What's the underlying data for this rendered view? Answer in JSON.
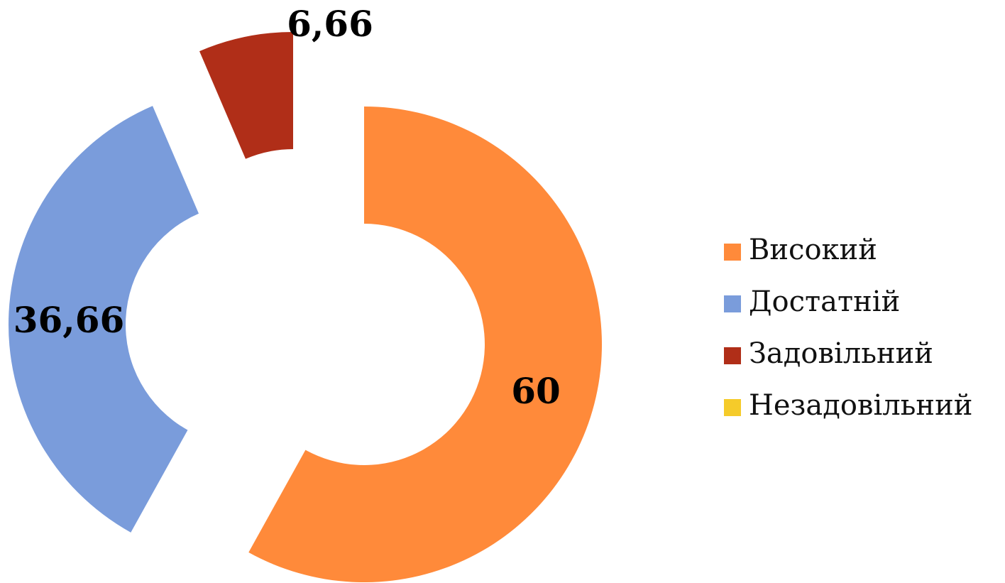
{
  "chart_data": {
    "type": "donut",
    "categories": [
      "Високий",
      "Достатній",
      "Задовільний",
      "Незадовільний"
    ],
    "values": [
      60,
      36.66,
      6.66,
      0
    ],
    "value_labels": [
      "60",
      "36,66",
      "6,66",
      null
    ],
    "colors": [
      "#FF8A3A",
      "#7A9CDB",
      "#B02E18",
      "#F5CB2A"
    ],
    "legend": "right"
  }
}
